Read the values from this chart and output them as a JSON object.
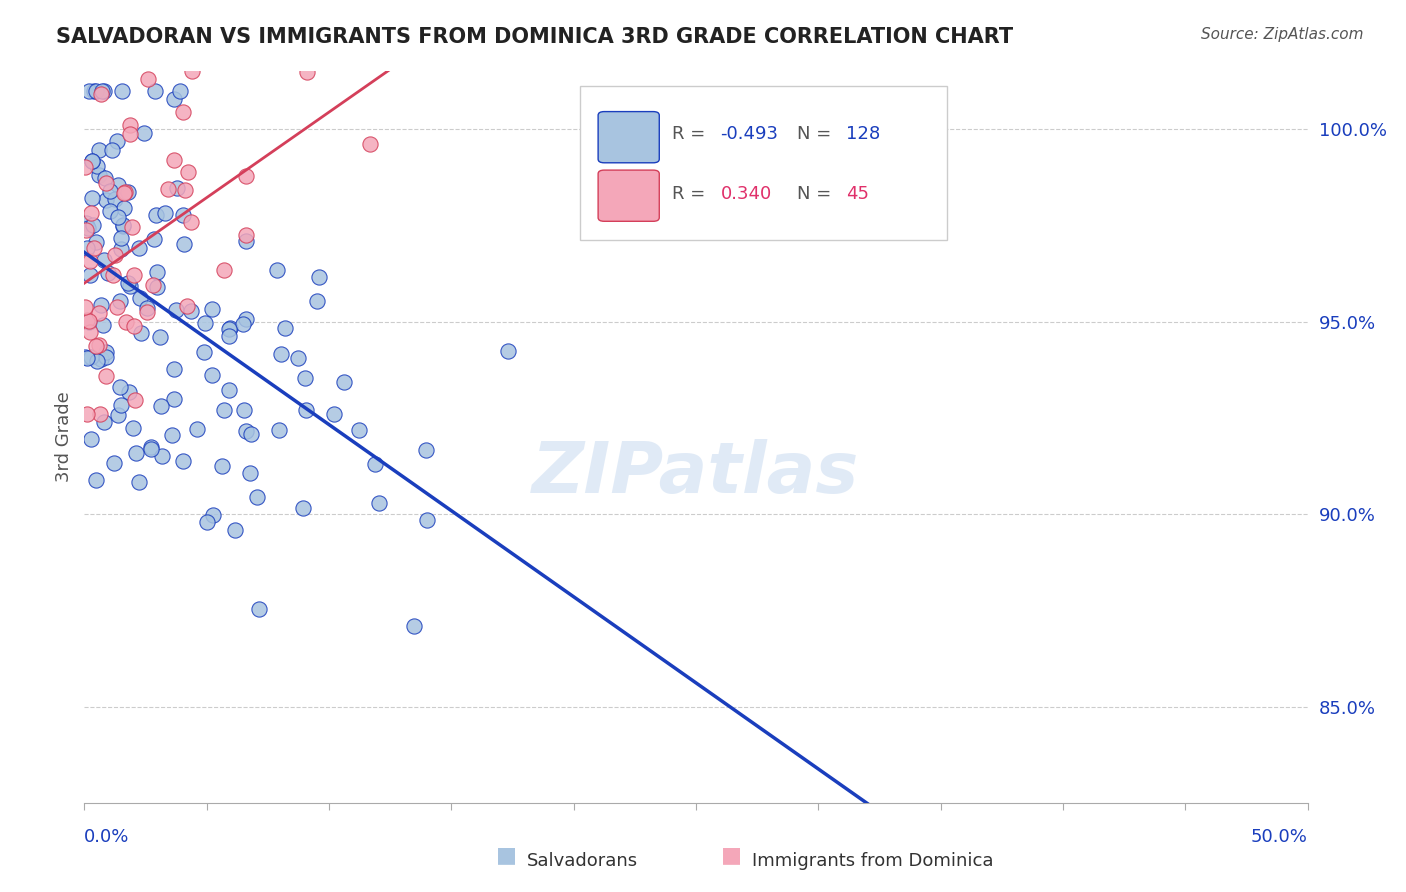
{
  "title": "SALVADORAN VS IMMIGRANTS FROM DOMINICA 3RD GRADE CORRELATION CHART",
  "source": "Source: ZipAtlas.com",
  "ylabel": "3rd Grade",
  "ylabel_right_labels": [
    "100.0%",
    "95.0%",
    "90.0%",
    "85.0%"
  ],
  "ylabel_right_values": [
    1.0,
    0.95,
    0.9,
    0.85
  ],
  "scatter_color_blue": "#a8c4e0",
  "scatter_color_pink": "#f4a7b9",
  "line_color_blue": "#1a3ebd",
  "line_color_pink": "#d43f5a",
  "xlim": [
    0.0,
    0.5
  ],
  "ylim": [
    0.825,
    1.015
  ],
  "watermark": "ZIPatlas",
  "blue_R": -0.493,
  "blue_N": 128,
  "pink_R": 0.34,
  "pink_N": 45,
  "seed_blue": 42,
  "seed_pink": 99
}
